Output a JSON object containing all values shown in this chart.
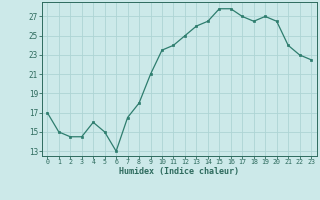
{
  "x": [
    0,
    1,
    2,
    3,
    4,
    5,
    6,
    7,
    8,
    9,
    10,
    11,
    12,
    13,
    14,
    15,
    16,
    17,
    18,
    19,
    20,
    21,
    22,
    23
  ],
  "y": [
    17,
    15,
    14.5,
    14.5,
    16,
    15,
    13,
    16.5,
    18,
    21,
    23.5,
    24,
    25,
    26,
    26.5,
    27.8,
    27.8,
    27,
    26.5,
    27,
    26.5,
    24,
    23,
    22.5
  ],
  "line_color": "#2e7d6e",
  "marker_color": "#2e7d6e",
  "bg_color": "#cce9e9",
  "grid_color": "#aed4d4",
  "xlabel": "Humidex (Indice chaleur)",
  "yticks": [
    13,
    15,
    17,
    19,
    21,
    23,
    25,
    27
  ],
  "xticks": [
    0,
    1,
    2,
    3,
    4,
    5,
    6,
    7,
    8,
    9,
    10,
    11,
    12,
    13,
    14,
    15,
    16,
    17,
    18,
    19,
    20,
    21,
    22,
    23
  ],
  "ylim": [
    12.5,
    28.5
  ],
  "xlim": [
    -0.5,
    23.5
  ],
  "tick_color": "#2e6b5e",
  "spine_color": "#2e6b5e"
}
